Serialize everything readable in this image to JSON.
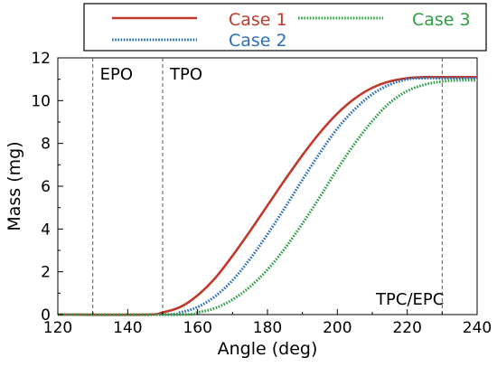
{
  "chart_data": {
    "type": "line",
    "xlabel": "Angle (deg)",
    "ylabel": "Mass (mg)",
    "xlim": [
      120,
      240
    ],
    "ylim": [
      0,
      12
    ],
    "xticks": [
      120,
      140,
      160,
      180,
      200,
      220,
      240
    ],
    "yticks": [
      0,
      2,
      4,
      6,
      8,
      10,
      12
    ],
    "grid": false,
    "legend_position": "top",
    "vertical_lines": [
      {
        "x": 130,
        "label": "EPO"
      },
      {
        "x": 150,
        "label": "TPO"
      },
      {
        "x": 230,
        "label": "TPC/EPC"
      }
    ],
    "series": [
      {
        "name": "Case 1",
        "color": "#c0392b",
        "style": "solid",
        "x": [
          120,
          145,
          150,
          155,
          160,
          165,
          170,
          175,
          180,
          185,
          190,
          195,
          200,
          205,
          210,
          215,
          220,
          225,
          230,
          240
        ],
        "y": [
          0,
          0,
          0.1,
          0.35,
          0.9,
          1.7,
          2.75,
          3.9,
          5.1,
          6.3,
          7.45,
          8.5,
          9.4,
          10.1,
          10.6,
          10.9,
          11.05,
          11.1,
          11.1,
          11.1
        ]
      },
      {
        "name": "Case 2",
        "color": "#2a6ebb",
        "style": "dotted",
        "x": [
          120,
          150,
          155,
          160,
          165,
          170,
          175,
          180,
          185,
          190,
          195,
          200,
          205,
          210,
          215,
          220,
          225,
          230,
          240
        ],
        "y": [
          0,
          0,
          0.1,
          0.35,
          0.85,
          1.6,
          2.6,
          3.75,
          5.0,
          6.3,
          7.55,
          8.7,
          9.6,
          10.3,
          10.75,
          11.0,
          11.05,
          11.05,
          11.05
        ]
      },
      {
        "name": "Case 3",
        "color": "#2e9e45",
        "style": "dotted",
        "x": [
          120,
          155,
          160,
          165,
          170,
          175,
          180,
          185,
          190,
          195,
          200,
          205,
          210,
          215,
          220,
          225,
          230,
          235,
          240
        ],
        "y": [
          0,
          0,
          0.1,
          0.3,
          0.7,
          1.3,
          2.1,
          3.1,
          4.25,
          5.5,
          6.8,
          8.0,
          9.05,
          9.9,
          10.45,
          10.75,
          10.9,
          10.95,
          10.95
        ]
      }
    ]
  }
}
